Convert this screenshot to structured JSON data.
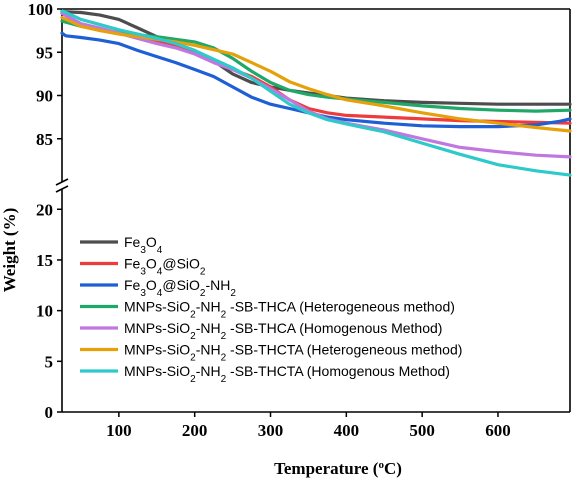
{
  "chart_data": {
    "type": "line",
    "title": "",
    "xlabel": "Temperature (°C)",
    "xlabel_parts": {
      "pre": "Temperature (",
      "sup": "o",
      "post": "C)"
    },
    "ylabel": "Weight (%)",
    "xlim": [
      25,
      695
    ],
    "xticks": [
      100,
      200,
      300,
      400,
      500,
      600
    ],
    "ylim": [
      0,
      100
    ],
    "y_axis_break": [
      22,
      80
    ],
    "yticks_lower": [
      0,
      5,
      10,
      15,
      20
    ],
    "yticks_upper": [
      85,
      90,
      95,
      100
    ],
    "grid": false,
    "legend_position": "lower-left",
    "series": [
      {
        "name": "Fe3O4",
        "label_parts": [
          {
            "t": "Fe"
          },
          {
            "t": "3",
            "sub": true
          },
          {
            "t": "O"
          },
          {
            "t": "4",
            "sub": true
          }
        ],
        "color": "#4d4d4d",
        "points": [
          [
            25,
            99.7
          ],
          [
            50,
            99.6
          ],
          [
            75,
            99.3
          ],
          [
            100,
            98.8
          ],
          [
            125,
            97.8
          ],
          [
            150,
            96.8
          ],
          [
            175,
            96.0
          ],
          [
            200,
            95.2
          ],
          [
            225,
            94.0
          ],
          [
            250,
            92.5
          ],
          [
            275,
            91.5
          ],
          [
            300,
            91.0
          ],
          [
            325,
            90.6
          ],
          [
            350,
            90.3
          ],
          [
            375,
            90.0
          ],
          [
            400,
            89.7
          ],
          [
            450,
            89.4
          ],
          [
            500,
            89.2
          ],
          [
            550,
            89.1
          ],
          [
            600,
            89.0
          ],
          [
            650,
            89.0
          ],
          [
            695,
            89.0
          ]
        ]
      },
      {
        "name": "Fe3O4@SiO2",
        "label_parts": [
          {
            "t": "Fe"
          },
          {
            "t": "3",
            "sub": true
          },
          {
            "t": "O"
          },
          {
            "t": "4",
            "sub": true
          },
          {
            "t": "@SiO"
          },
          {
            "t": "2",
            "sub": true
          }
        ],
        "color": "#ee3b3b",
        "points": [
          [
            25,
            99.5
          ],
          [
            50,
            98.2
          ],
          [
            75,
            97.6
          ],
          [
            100,
            97.2
          ],
          [
            125,
            96.8
          ],
          [
            150,
            96.3
          ],
          [
            175,
            95.8
          ],
          [
            200,
            95.0
          ],
          [
            225,
            94.0
          ],
          [
            250,
            93.0
          ],
          [
            275,
            92.2
          ],
          [
            300,
            91.0
          ],
          [
            325,
            89.5
          ],
          [
            350,
            88.5
          ],
          [
            375,
            88.0
          ],
          [
            400,
            87.7
          ],
          [
            450,
            87.5
          ],
          [
            500,
            87.3
          ],
          [
            550,
            87.1
          ],
          [
            600,
            87.0
          ],
          [
            650,
            86.9
          ],
          [
            695,
            86.8
          ]
        ]
      },
      {
        "name": "Fe3O4@SiO2-NH2",
        "label_parts": [
          {
            "t": "Fe"
          },
          {
            "t": "3",
            "sub": true
          },
          {
            "t": "O"
          },
          {
            "t": "4",
            "sub": true
          },
          {
            "t": "@SiO"
          },
          {
            "t": "2",
            "sub": true
          },
          {
            "t": "-NH"
          },
          {
            "t": "2",
            "sub": true
          }
        ],
        "color": "#1f5fd6",
        "points": [
          [
            25,
            97.2
          ],
          [
            30,
            96.9
          ],
          [
            50,
            96.7
          ],
          [
            75,
            96.4
          ],
          [
            100,
            96.0
          ],
          [
            125,
            95.2
          ],
          [
            150,
            94.5
          ],
          [
            175,
            93.8
          ],
          [
            200,
            93.0
          ],
          [
            225,
            92.2
          ],
          [
            250,
            91.0
          ],
          [
            275,
            89.8
          ],
          [
            300,
            89.0
          ],
          [
            325,
            88.5
          ],
          [
            350,
            88.0
          ],
          [
            375,
            87.5
          ],
          [
            400,
            87.2
          ],
          [
            450,
            86.8
          ],
          [
            500,
            86.5
          ],
          [
            550,
            86.4
          ],
          [
            600,
            86.4
          ],
          [
            650,
            86.6
          ],
          [
            680,
            87.0
          ],
          [
            695,
            87.3
          ]
        ]
      },
      {
        "name": "MNPs-SiO2-NH2 -SB-THCA (Heterogeneous method)",
        "label_parts": [
          {
            "t": "MNPs-SiO"
          },
          {
            "t": "2",
            "sub": true
          },
          {
            "t": "-NH"
          },
          {
            "t": "2",
            "sub": true
          },
          {
            "t": " -SB-THCA (Heterogeneous method)"
          }
        ],
        "color": "#20a86a",
        "points": [
          [
            25,
            98.6
          ],
          [
            50,
            98.0
          ],
          [
            75,
            97.6
          ],
          [
            100,
            97.3
          ],
          [
            125,
            97.0
          ],
          [
            150,
            96.8
          ],
          [
            175,
            96.5
          ],
          [
            200,
            96.2
          ],
          [
            225,
            95.5
          ],
          [
            250,
            94.3
          ],
          [
            275,
            92.8
          ],
          [
            300,
            91.5
          ],
          [
            325,
            90.6
          ],
          [
            350,
            90.1
          ],
          [
            375,
            89.8
          ],
          [
            400,
            89.6
          ],
          [
            450,
            89.2
          ],
          [
            500,
            88.8
          ],
          [
            550,
            88.5
          ],
          [
            600,
            88.3
          ],
          [
            650,
            88.2
          ],
          [
            695,
            88.3
          ]
        ]
      },
      {
        "name": "MNPs-SiO2-NH2 -SB-THCA (Homogenous Method)",
        "label_parts": [
          {
            "t": "MNPs-SiO"
          },
          {
            "t": "2",
            "sub": true
          },
          {
            "t": "-NH"
          },
          {
            "t": "2",
            "sub": true
          },
          {
            "t": " -SB-THCA (Homogenous Method)"
          }
        ],
        "color": "#c078e0",
        "points": [
          [
            25,
            99.5
          ],
          [
            50,
            98.3
          ],
          [
            75,
            97.8
          ],
          [
            100,
            97.2
          ],
          [
            125,
            96.6
          ],
          [
            150,
            96.0
          ],
          [
            175,
            95.5
          ],
          [
            200,
            94.8
          ],
          [
            225,
            93.8
          ],
          [
            250,
            93.0
          ],
          [
            275,
            92.0
          ],
          [
            300,
            90.8
          ],
          [
            325,
            89.5
          ],
          [
            350,
            88.2
          ],
          [
            375,
            87.3
          ],
          [
            400,
            86.8
          ],
          [
            450,
            86.0
          ],
          [
            500,
            85.0
          ],
          [
            550,
            84.0
          ],
          [
            600,
            83.5
          ],
          [
            650,
            83.1
          ],
          [
            695,
            82.9
          ]
        ]
      },
      {
        "name": "MNPs-SiO2-NH2 -SB-THCTA (Heterogeneous method)",
        "label_parts": [
          {
            "t": "MNPs-SiO"
          },
          {
            "t": "2",
            "sub": true
          },
          {
            "t": "-NH"
          },
          {
            "t": "2",
            "sub": true
          },
          {
            "t": " -SB-THCTA (Heterogeneous method)"
          }
        ],
        "color": "#e6a00a",
        "points": [
          [
            25,
            99.0
          ],
          [
            50,
            98.0
          ],
          [
            75,
            97.5
          ],
          [
            100,
            97.1
          ],
          [
            125,
            96.8
          ],
          [
            150,
            96.5
          ],
          [
            175,
            96.2
          ],
          [
            200,
            95.8
          ],
          [
            225,
            95.3
          ],
          [
            250,
            94.8
          ],
          [
            275,
            93.8
          ],
          [
            300,
            92.8
          ],
          [
            325,
            91.6
          ],
          [
            350,
            90.8
          ],
          [
            375,
            90.1
          ],
          [
            400,
            89.5
          ],
          [
            450,
            88.8
          ],
          [
            500,
            88.0
          ],
          [
            550,
            87.3
          ],
          [
            600,
            86.8
          ],
          [
            650,
            86.3
          ],
          [
            695,
            85.9
          ]
        ]
      },
      {
        "name": "MNPs-SiO2-NH2 -SB-THCTA (Homogenous Method)",
        "label_parts": [
          {
            "t": "MNPs-SiO"
          },
          {
            "t": "2",
            "sub": true
          },
          {
            "t": "-NH"
          },
          {
            "t": "2",
            "sub": true
          },
          {
            "t": " -SB-THCTA (Homogenous Method)"
          }
        ],
        "color": "#2ec9c9",
        "points": [
          [
            25,
            99.8
          ],
          [
            50,
            98.8
          ],
          [
            75,
            98.2
          ],
          [
            100,
            97.6
          ],
          [
            125,
            97.1
          ],
          [
            150,
            96.6
          ],
          [
            175,
            96.0
          ],
          [
            200,
            95.2
          ],
          [
            225,
            94.2
          ],
          [
            250,
            93.2
          ],
          [
            275,
            92.0
          ],
          [
            300,
            90.5
          ],
          [
            325,
            89.0
          ],
          [
            350,
            88.0
          ],
          [
            375,
            87.2
          ],
          [
            400,
            86.7
          ],
          [
            450,
            85.8
          ],
          [
            500,
            84.5
          ],
          [
            550,
            83.2
          ],
          [
            600,
            82.0
          ],
          [
            650,
            81.3
          ],
          [
            695,
            80.8
          ]
        ]
      }
    ]
  }
}
